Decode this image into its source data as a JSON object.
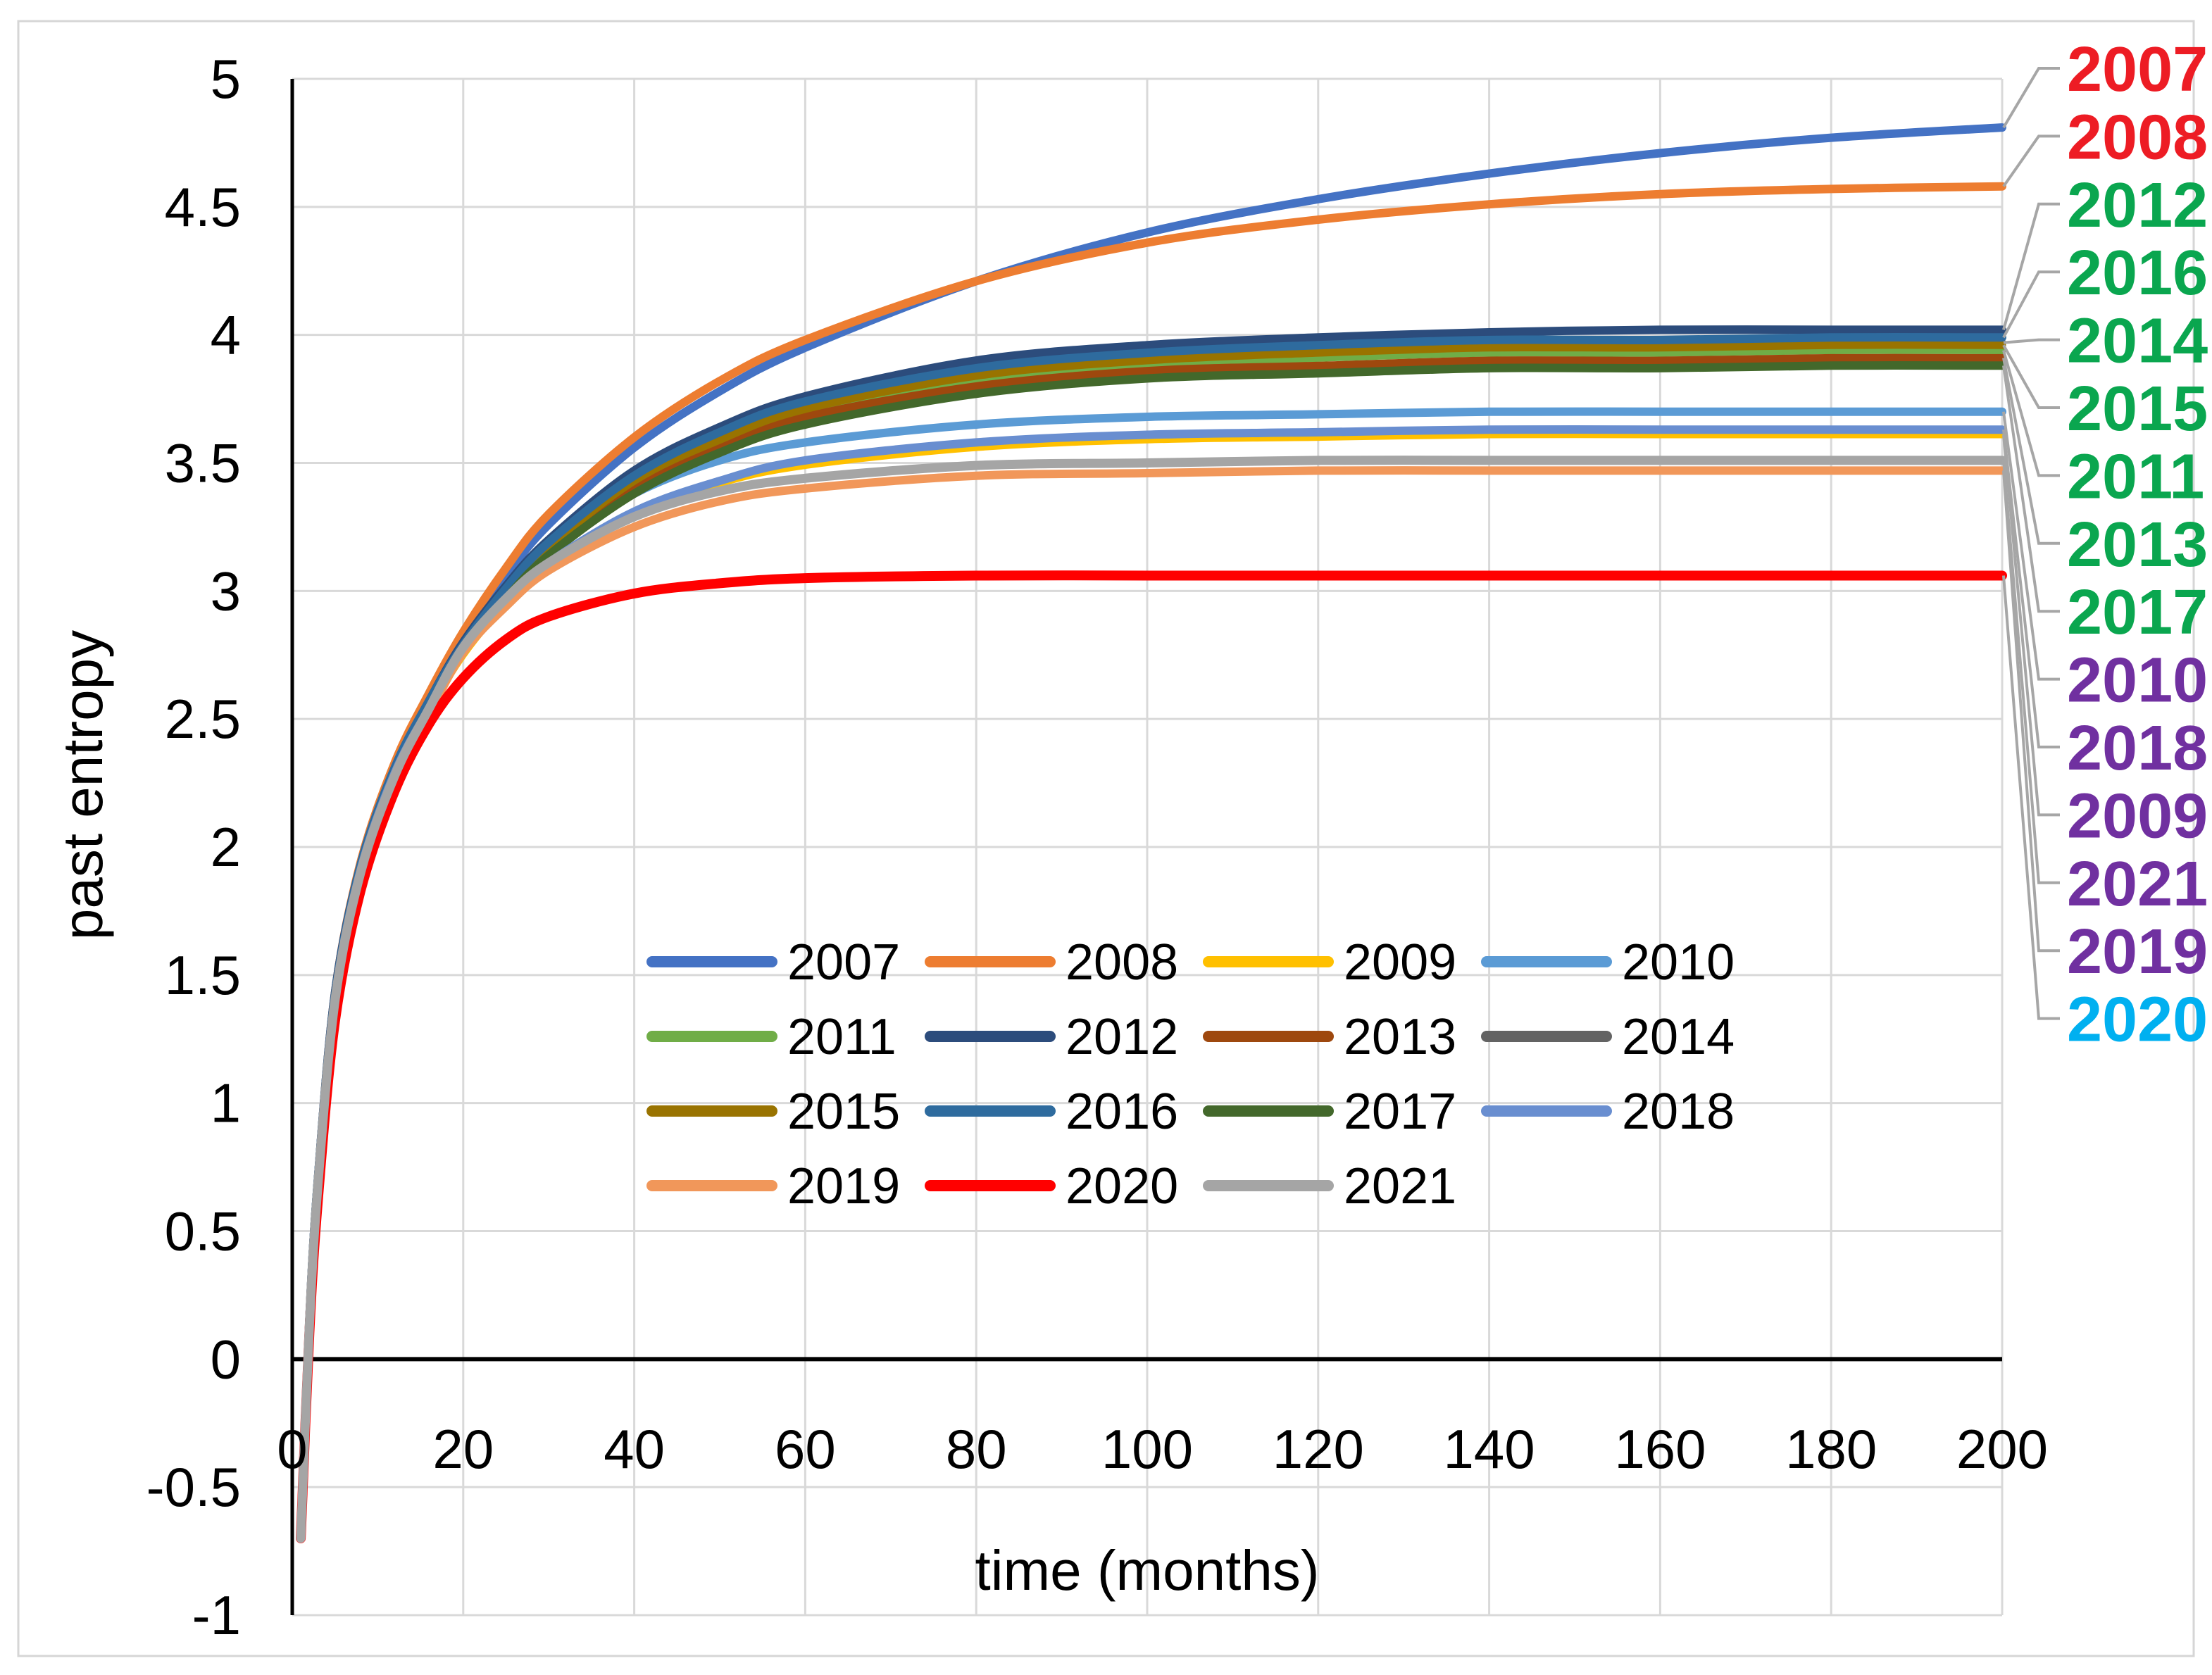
{
  "figure": {
    "background": "#FFFFFF",
    "border_color": "#D6D6D6",
    "grid_color": "#D9D9D9",
    "axis_color": "#000000",
    "leader_color": "#A6A6A6",
    "tick_label_color": "#000000"
  },
  "chart_data": {
    "type": "line",
    "title": "",
    "xlabel": "time (months)",
    "ylabel": "past entropy",
    "xlim": [
      0,
      200
    ],
    "ylim": [
      -1,
      5
    ],
    "x_ticks": [
      0,
      20,
      40,
      60,
      80,
      100,
      120,
      140,
      160,
      180,
      200
    ],
    "y_ticks": [
      5,
      4.5,
      4,
      3.5,
      3,
      2.5,
      2,
      1.5,
      1,
      0.5,
      0,
      -0.5,
      -1
    ],
    "grid": true,
    "legend_position": "inside-center",
    "x": [
      1,
      2,
      3,
      5,
      8,
      12,
      16,
      20,
      25,
      30,
      40,
      50,
      60,
      80,
      100,
      120,
      140,
      160,
      180,
      200
    ],
    "series": [
      {
        "name": "2007",
        "color": "#4472C4",
        "width": 12,
        "values": [
          -0.7,
          0.15,
          0.7,
          1.43,
          1.93,
          2.32,
          2.58,
          2.82,
          3.06,
          3.26,
          3.56,
          3.78,
          3.95,
          4.21,
          4.4,
          4.53,
          4.63,
          4.71,
          4.77,
          4.81
        ]
      },
      {
        "name": "2008",
        "color": "#ED7D31",
        "width": 12,
        "values": [
          -0.7,
          0.15,
          0.7,
          1.43,
          1.94,
          2.33,
          2.6,
          2.84,
          3.09,
          3.3,
          3.6,
          3.82,
          3.98,
          4.21,
          4.36,
          4.45,
          4.51,
          4.55,
          4.57,
          4.58
        ]
      },
      {
        "name": "2009",
        "color": "#FFC000",
        "width": 10,
        "values": [
          -0.7,
          0.14,
          0.68,
          1.4,
          1.9,
          2.28,
          2.53,
          2.75,
          2.95,
          3.1,
          3.3,
          3.42,
          3.49,
          3.56,
          3.59,
          3.6,
          3.61,
          3.61,
          3.61,
          3.61
        ]
      },
      {
        "name": "2010",
        "color": "#5B9BD5",
        "width": 12,
        "values": [
          -0.7,
          0.15,
          0.7,
          1.42,
          1.92,
          2.31,
          2.57,
          2.8,
          3.01,
          3.17,
          3.38,
          3.51,
          3.58,
          3.65,
          3.68,
          3.69,
          3.7,
          3.7,
          3.7,
          3.7
        ]
      },
      {
        "name": "2011",
        "color": "#70AD47",
        "width": 11,
        "values": [
          -0.7,
          0.15,
          0.69,
          1.42,
          1.92,
          2.3,
          2.56,
          2.78,
          2.99,
          3.16,
          3.42,
          3.58,
          3.7,
          3.82,
          3.88,
          3.91,
          3.93,
          3.93,
          3.94,
          3.94
        ]
      },
      {
        "name": "2012",
        "color": "#2C4C7C",
        "width": 12,
        "values": [
          -0.7,
          0.15,
          0.7,
          1.43,
          1.93,
          2.31,
          2.57,
          2.8,
          3.02,
          3.2,
          3.47,
          3.64,
          3.76,
          3.9,
          3.96,
          3.99,
          4.01,
          4.02,
          4.02,
          4.02
        ]
      },
      {
        "name": "2013",
        "color": "#9E480E",
        "width": 11,
        "values": [
          -0.7,
          0.14,
          0.69,
          1.41,
          1.91,
          2.3,
          2.55,
          2.77,
          2.98,
          3.15,
          3.4,
          3.56,
          3.68,
          3.8,
          3.86,
          3.88,
          3.9,
          3.9,
          3.91,
          3.91
        ]
      },
      {
        "name": "2014",
        "color": "#636363",
        "width": 11,
        "values": [
          -0.7,
          0.15,
          0.69,
          1.42,
          1.92,
          2.3,
          2.56,
          2.79,
          3.0,
          3.18,
          3.44,
          3.6,
          3.72,
          3.85,
          3.91,
          3.94,
          3.96,
          3.96,
          3.97,
          3.97
        ]
      },
      {
        "name": "2015",
        "color": "#997300",
        "width": 11,
        "values": [
          -0.7,
          0.14,
          0.69,
          1.42,
          1.92,
          2.3,
          2.56,
          2.78,
          3.0,
          3.17,
          3.43,
          3.59,
          3.71,
          3.84,
          3.9,
          3.93,
          3.95,
          3.95,
          3.96,
          3.96
        ]
      },
      {
        "name": "2016",
        "color": "#2E6B9E",
        "width": 12,
        "values": [
          -0.7,
          0.15,
          0.7,
          1.42,
          1.93,
          2.31,
          2.57,
          2.79,
          3.01,
          3.19,
          3.45,
          3.62,
          3.74,
          3.87,
          3.93,
          3.96,
          3.98,
          3.98,
          3.99,
          3.99
        ]
      },
      {
        "name": "2017",
        "color": "#43682B",
        "width": 12,
        "values": [
          -0.7,
          0.14,
          0.69,
          1.41,
          1.91,
          2.29,
          2.54,
          2.77,
          2.97,
          3.14,
          3.38,
          3.54,
          3.65,
          3.77,
          3.83,
          3.85,
          3.87,
          3.87,
          3.88,
          3.88
        ]
      },
      {
        "name": "2018",
        "color": "#698ED0",
        "width": 12,
        "values": [
          -0.7,
          0.14,
          0.68,
          1.41,
          1.91,
          2.29,
          2.54,
          2.76,
          2.96,
          3.11,
          3.31,
          3.43,
          3.51,
          3.58,
          3.61,
          3.62,
          3.63,
          3.63,
          3.63,
          3.63
        ]
      },
      {
        "name": "2019",
        "color": "#F1975A",
        "width": 12,
        "values": [
          -0.7,
          0.13,
          0.67,
          1.39,
          1.89,
          2.27,
          2.52,
          2.76,
          2.94,
          3.08,
          3.25,
          3.35,
          3.4,
          3.45,
          3.46,
          3.47,
          3.47,
          3.47,
          3.47,
          3.47
        ]
      },
      {
        "name": "2020",
        "color": "#FF0000",
        "width": 14,
        "values": [
          -0.7,
          0.1,
          0.62,
          1.32,
          1.83,
          2.22,
          2.48,
          2.66,
          2.81,
          2.9,
          2.99,
          3.03,
          3.05,
          3.06,
          3.06,
          3.06,
          3.06,
          3.06,
          3.06,
          3.06
        ]
      },
      {
        "name": "2021",
        "color": "#A5A5A5",
        "width": 13,
        "values": [
          -0.7,
          0.13,
          0.68,
          1.4,
          1.9,
          2.28,
          2.54,
          2.78,
          2.97,
          3.11,
          3.29,
          3.39,
          3.44,
          3.49,
          3.5,
          3.51,
          3.51,
          3.51,
          3.51,
          3.51
        ]
      }
    ],
    "legend_rows": [
      [
        "2007",
        "2008",
        "2009",
        "2010"
      ],
      [
        "2011",
        "2012",
        "2013",
        "2014"
      ],
      [
        "2015",
        "2016",
        "2017",
        "2018"
      ],
      [
        "2019",
        "2020",
        "2021"
      ]
    ],
    "right_labels": [
      {
        "year": "2007",
        "color": "#ED1C24"
      },
      {
        "year": "2008",
        "color": "#ED1C24"
      },
      {
        "year": "2012",
        "color": "#0AA64F"
      },
      {
        "year": "2016",
        "color": "#0AA64F"
      },
      {
        "year": "2014",
        "color": "#0AA64F"
      },
      {
        "year": "2015",
        "color": "#0AA64F"
      },
      {
        "year": "2011",
        "color": "#0AA64F"
      },
      {
        "year": "2013",
        "color": "#0AA64F"
      },
      {
        "year": "2017",
        "color": "#0AA64F"
      },
      {
        "year": "2010",
        "color": "#7030A0"
      },
      {
        "year": "2018",
        "color": "#7030A0"
      },
      {
        "year": "2009",
        "color": "#7030A0"
      },
      {
        "year": "2021",
        "color": "#7030A0"
      },
      {
        "year": "2019",
        "color": "#7030A0"
      },
      {
        "year": "2020",
        "color": "#00B0F0"
      }
    ]
  }
}
